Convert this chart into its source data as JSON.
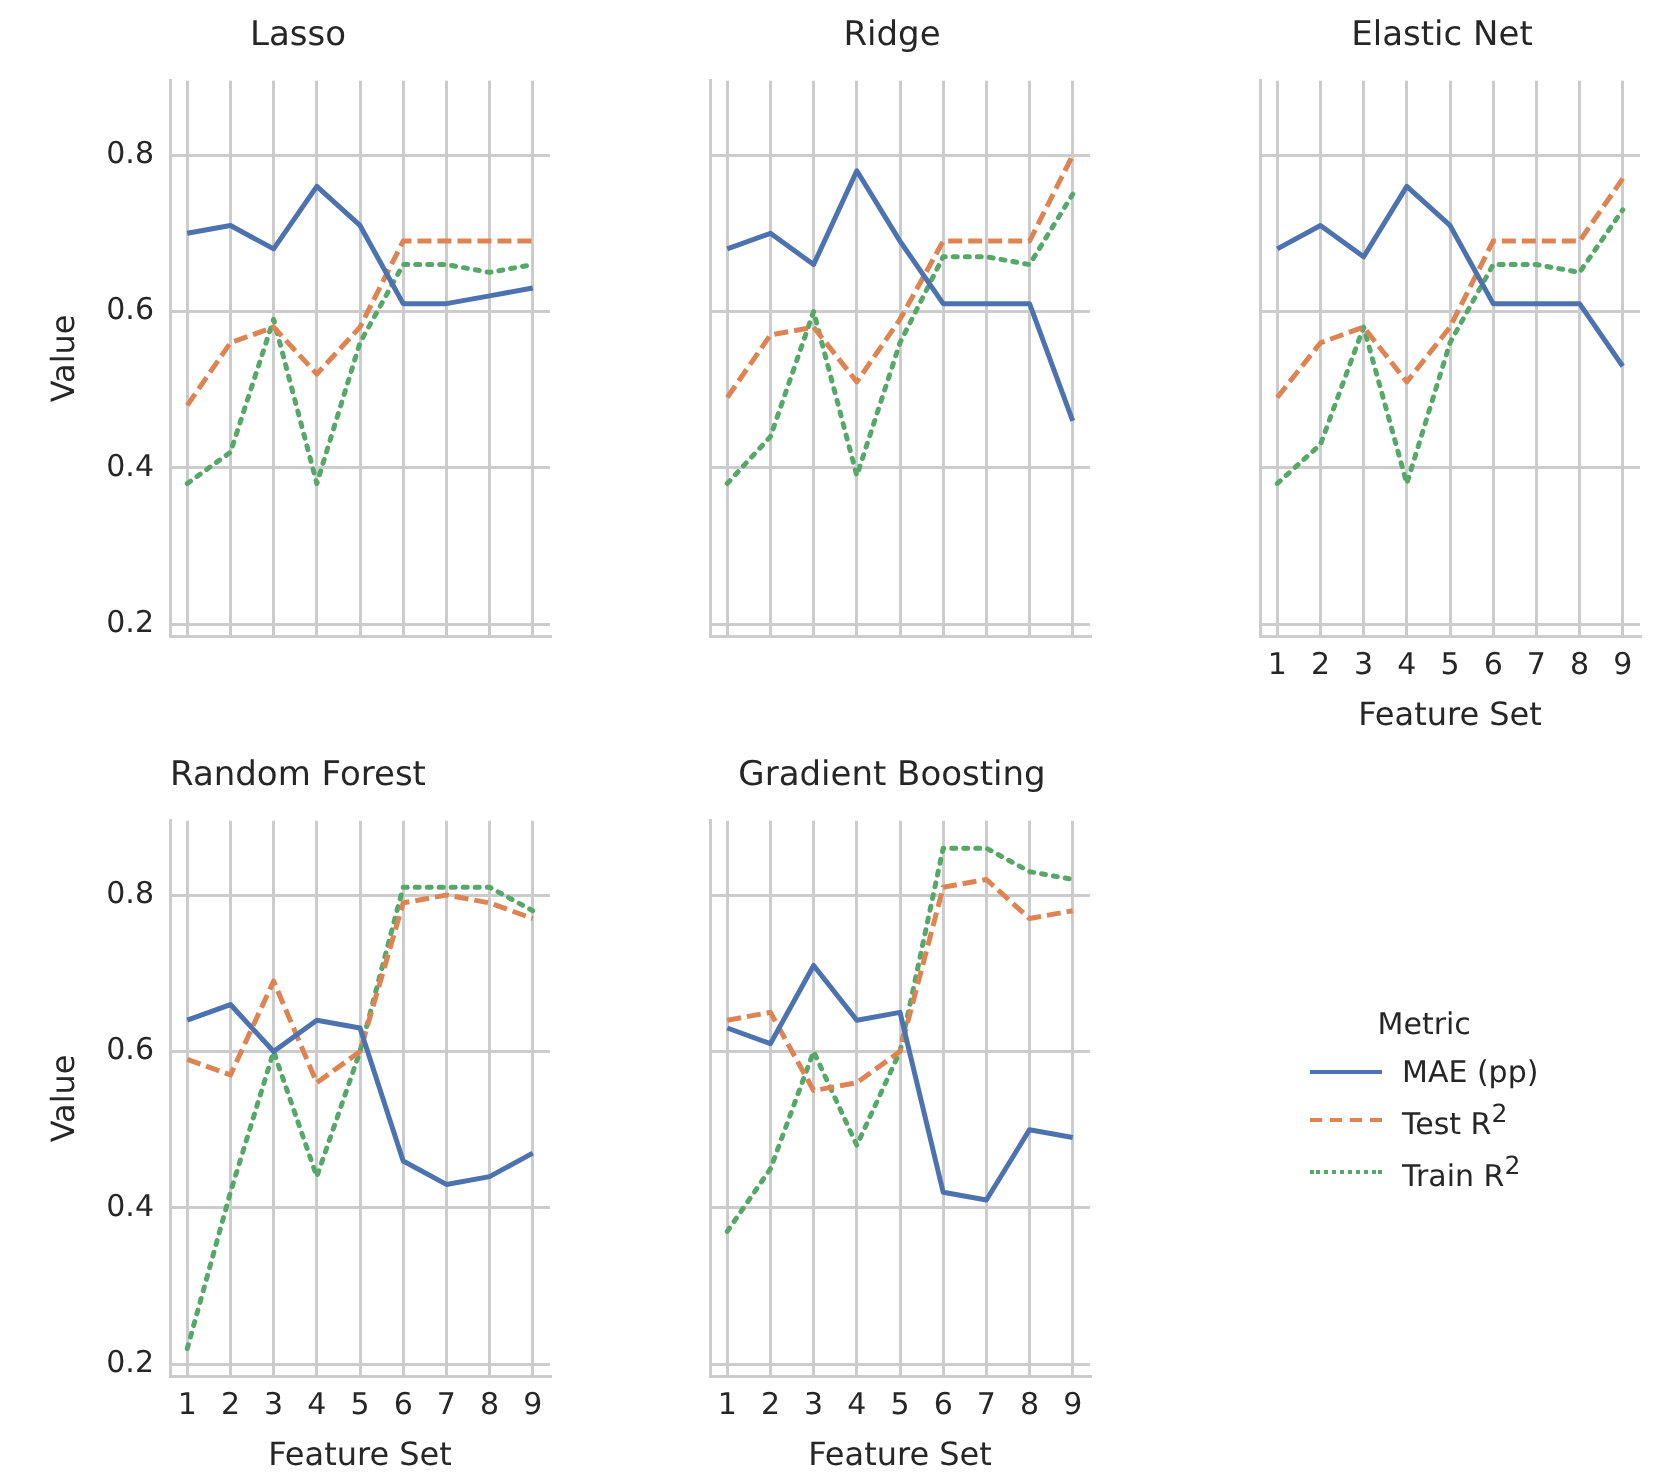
{
  "chart_data": [
    {
      "type": "line",
      "title": "Lasso",
      "ylabel": "Value",
      "x": [
        1,
        2,
        3,
        4,
        5,
        6,
        7,
        8,
        9
      ],
      "xlim": [
        0.6,
        9.4
      ],
      "xticks": [
        1,
        2,
        3,
        4,
        5,
        6,
        7,
        8,
        9
      ],
      "ylim": [
        0.185,
        0.895
      ],
      "yticks": [
        0.2,
        0.4,
        0.6,
        0.8
      ],
      "grid": true,
      "marker": "none",
      "tick_labels": "y",
      "series": [
        {
          "color": "#4c72b0",
          "line_style": "solid",
          "values": [
            0.7,
            0.71,
            0.68,
            0.76,
            0.71,
            0.61,
            0.61,
            0.62,
            0.63
          ]
        },
        {
          "color": "#dd8452",
          "line_style": "dashed",
          "values": [
            0.48,
            0.56,
            0.58,
            0.52,
            0.58,
            0.69,
            0.69,
            0.69,
            0.69
          ]
        },
        {
          "color": "#55a868",
          "line_style": "dotted",
          "values": [
            0.38,
            0.42,
            0.59,
            0.38,
            0.56,
            0.66,
            0.66,
            0.65,
            0.66
          ]
        }
      ]
    },
    {
      "type": "line",
      "title": "Ridge",
      "x": [
        1,
        2,
        3,
        4,
        5,
        6,
        7,
        8,
        9
      ],
      "xlim": [
        0.6,
        9.4
      ],
      "xticks": [
        1,
        2,
        3,
        4,
        5,
        6,
        7,
        8,
        9
      ],
      "ylim": [
        0.185,
        0.895
      ],
      "yticks": [
        0.2,
        0.4,
        0.6,
        0.8
      ],
      "grid": true,
      "marker": "none",
      "tick_labels": false,
      "series": [
        {
          "color": "#4c72b0",
          "line_style": "solid",
          "values": [
            0.68,
            0.7,
            0.66,
            0.78,
            0.69,
            0.61,
            0.61,
            0.61,
            0.46
          ]
        },
        {
          "color": "#dd8452",
          "line_style": "dashed",
          "values": [
            0.49,
            0.57,
            0.58,
            0.51,
            0.59,
            0.69,
            0.69,
            0.69,
            0.8
          ]
        },
        {
          "color": "#55a868",
          "line_style": "dotted",
          "values": [
            0.38,
            0.44,
            0.6,
            0.39,
            0.56,
            0.67,
            0.67,
            0.66,
            0.75
          ]
        }
      ]
    },
    {
      "type": "line",
      "title": "Elastic Net",
      "xlabel": "Feature Set",
      "x": [
        1,
        2,
        3,
        4,
        5,
        6,
        7,
        8,
        9
      ],
      "xlim": [
        0.6,
        9.4
      ],
      "xticks": [
        1,
        2,
        3,
        4,
        5,
        6,
        7,
        8,
        9
      ],
      "ylim": [
        0.185,
        0.895
      ],
      "yticks": [
        0.2,
        0.4,
        0.6,
        0.8
      ],
      "grid": true,
      "marker": "none",
      "tick_labels": "x",
      "series": [
        {
          "color": "#4c72b0",
          "line_style": "solid",
          "values": [
            0.68,
            0.71,
            0.67,
            0.76,
            0.71,
            0.61,
            0.61,
            0.61,
            0.53
          ]
        },
        {
          "color": "#dd8452",
          "line_style": "dashed",
          "values": [
            0.49,
            0.56,
            0.58,
            0.51,
            0.58,
            0.69,
            0.69,
            0.69,
            0.77
          ]
        },
        {
          "color": "#55a868",
          "line_style": "dotted",
          "values": [
            0.38,
            0.43,
            0.58,
            0.38,
            0.56,
            0.66,
            0.66,
            0.65,
            0.73
          ]
        }
      ]
    },
    {
      "type": "line",
      "title": "Random Forest",
      "xlabel": "Feature Set",
      "ylabel": "Value",
      "x": [
        1,
        2,
        3,
        4,
        5,
        6,
        7,
        8,
        9
      ],
      "xlim": [
        0.6,
        9.4
      ],
      "xticks": [
        1,
        2,
        3,
        4,
        5,
        6,
        7,
        8,
        9
      ],
      "ylim": [
        0.185,
        0.895
      ],
      "yticks": [
        0.2,
        0.4,
        0.6,
        0.8
      ],
      "grid": true,
      "marker": "none",
      "series": [
        {
          "color": "#4c72b0",
          "line_style": "solid",
          "values": [
            0.64,
            0.66,
            0.6,
            0.64,
            0.63,
            0.46,
            0.43,
            0.44,
            0.47
          ]
        },
        {
          "color": "#dd8452",
          "line_style": "dashed",
          "values": [
            0.59,
            0.57,
            0.69,
            0.56,
            0.6,
            0.79,
            0.8,
            0.79,
            0.77
          ]
        },
        {
          "color": "#55a868",
          "line_style": "dotted",
          "values": [
            0.22,
            0.42,
            0.6,
            0.44,
            0.6,
            0.81,
            0.81,
            0.81,
            0.78
          ]
        }
      ]
    },
    {
      "type": "line",
      "title": "Gradient Boosting",
      "xlabel": "Feature Set",
      "x": [
        1,
        2,
        3,
        4,
        5,
        6,
        7,
        8,
        9
      ],
      "xlim": [
        0.6,
        9.4
      ],
      "xticks": [
        1,
        2,
        3,
        4,
        5,
        6,
        7,
        8,
        9
      ],
      "ylim": [
        0.185,
        0.895
      ],
      "yticks": [
        0.2,
        0.4,
        0.6,
        0.8
      ],
      "grid": true,
      "marker": "none",
      "tick_labels": "x",
      "legend": "right",
      "legend_title": "Metric",
      "series": [
        {
          "name": "MAE (pp)",
          "color": "#4c72b0",
          "line_style": "solid",
          "values": [
            0.63,
            0.61,
            0.71,
            0.64,
            0.65,
            0.42,
            0.41,
            0.5,
            0.49
          ]
        },
        {
          "name": "Test R$^{2}$",
          "color": "#dd8452",
          "line_style": "dashed",
          "values": [
            0.64,
            0.65,
            0.55,
            0.56,
            0.6,
            0.81,
            0.82,
            0.77,
            0.78
          ]
        },
        {
          "name": "Train R$^{2}$",
          "color": "#55a868",
          "line_style": "dotted",
          "values": [
            0.37,
            0.45,
            0.6,
            0.48,
            0.6,
            0.86,
            0.86,
            0.83,
            0.82
          ]
        }
      ]
    }
  ]
}
